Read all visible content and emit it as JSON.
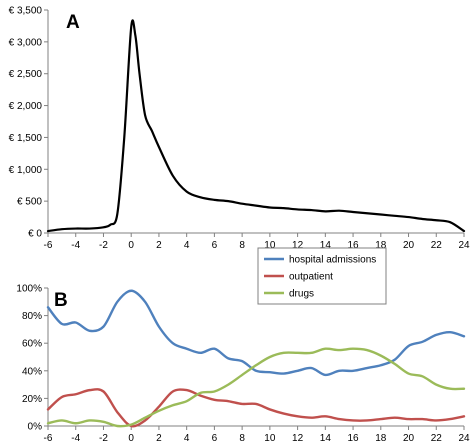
{
  "chart_data": [
    {
      "type": "line",
      "panel_label": "A",
      "x": [
        -6,
        -5,
        -4,
        -3,
        -2,
        -1.5,
        -1,
        -0.5,
        0,
        0.3,
        0.6,
        1,
        1.5,
        2,
        3,
        4,
        5,
        6,
        7,
        8,
        9,
        10,
        11,
        12,
        13,
        14,
        15,
        16,
        17,
        18,
        19,
        20,
        21,
        22,
        23,
        24
      ],
      "series": [
        {
          "color": "#000000",
          "values": [
            30,
            60,
            70,
            70,
            90,
            130,
            300,
            1500,
            3230,
            3100,
            2500,
            1850,
            1600,
            1350,
            900,
            650,
            560,
            520,
            500,
            460,
            430,
            400,
            390,
            370,
            360,
            340,
            350,
            330,
            310,
            290,
            270,
            250,
            220,
            200,
            170,
            30
          ]
        }
      ],
      "ylim": [
        0,
        3500
      ],
      "yticks": [
        0,
        500,
        1000,
        1500,
        2000,
        2500,
        3000,
        3500
      ],
      "ytick_labels": [
        "€ 0",
        "€ 500",
        "€ 1,000",
        "€ 1,500",
        "€ 2,000",
        "€ 2,500",
        "€ 3,000",
        "€ 3,500"
      ],
      "xlim": [
        -6,
        24
      ],
      "xticks": [
        -6,
        -4,
        -2,
        0,
        2,
        4,
        6,
        8,
        10,
        12,
        14,
        16,
        18,
        20,
        22,
        24
      ],
      "xtick_labels": [
        "-6",
        "-4",
        "-2",
        "0",
        "2",
        "4",
        "6",
        "8",
        "10",
        "12",
        "14",
        "16",
        "18",
        "20",
        "22",
        "24"
      ],
      "grid": false,
      "legend": "none"
    },
    {
      "type": "line",
      "panel_label": "B",
      "x": [
        -6,
        -5,
        -4,
        -3,
        -2,
        -1,
        0,
        1,
        2,
        3,
        4,
        5,
        6,
        7,
        8,
        9,
        10,
        11,
        12,
        13,
        14,
        15,
        16,
        17,
        18,
        19,
        20,
        21,
        22,
        23,
        24
      ],
      "series": [
        {
          "name": "hospital admissions",
          "color": "#4f81bd",
          "values": [
            86,
            74,
            75,
            69,
            72,
            90,
            98,
            90,
            72,
            60,
            56,
            53,
            56,
            49,
            47,
            40,
            39,
            38,
            40,
            42,
            37,
            40,
            40,
            42,
            44,
            48,
            58,
            61,
            66,
            68,
            65
          ]
        },
        {
          "name": "outpatient",
          "color": "#c0504d",
          "values": [
            12,
            21,
            23,
            26,
            25,
            10,
            0,
            4,
            14,
            25,
            26,
            22,
            19,
            18,
            16,
            16,
            12,
            9,
            7,
            6,
            7,
            5,
            4,
            4,
            5,
            6,
            5,
            5,
            4,
            5,
            7
          ]
        },
        {
          "name": "drugs",
          "color": "#9bbb59",
          "values": [
            2,
            4,
            2,
            4,
            3,
            0,
            1,
            6,
            11,
            15,
            18,
            24,
            25,
            30,
            37,
            44,
            50,
            53,
            53,
            53,
            56,
            55,
            56,
            55,
            51,
            45,
            38,
            36,
            30,
            27,
            27
          ]
        }
      ],
      "ylim": [
        0,
        100
      ],
      "yticks": [
        0,
        20,
        40,
        60,
        80,
        100
      ],
      "ytick_labels": [
        "0%",
        "20%",
        "40%",
        "60%",
        "80%",
        "100%"
      ],
      "xlim": [
        -6,
        24
      ],
      "xticks": [
        -6,
        -4,
        -2,
        0,
        2,
        4,
        6,
        8,
        10,
        12,
        14,
        16,
        18,
        20,
        22,
        24
      ],
      "xtick_labels": [
        "-6",
        "-4",
        "-2",
        "0",
        "2",
        "4",
        "6",
        "8",
        "10",
        "12",
        "14",
        "16",
        "18",
        "20",
        "22",
        "24"
      ],
      "grid": false,
      "legend": "top-right"
    }
  ]
}
